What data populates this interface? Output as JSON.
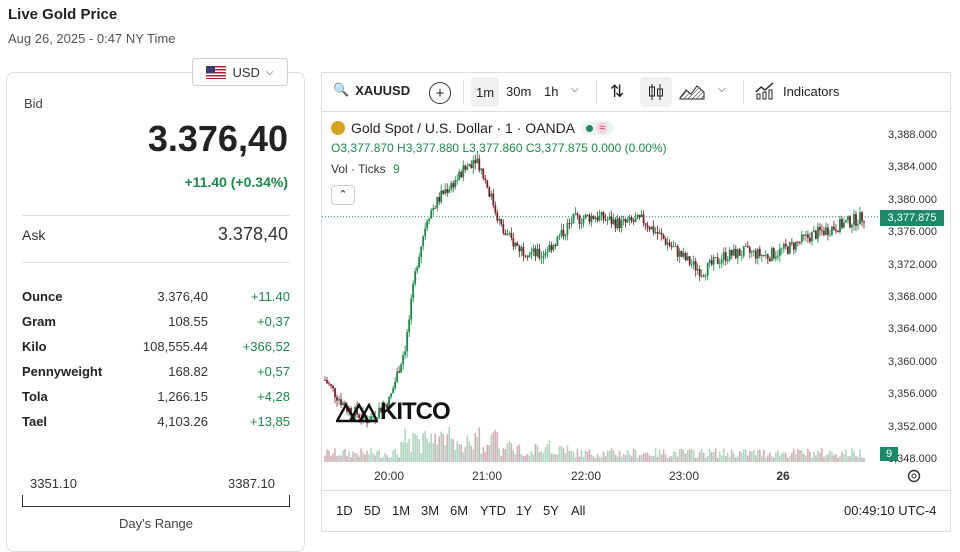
{
  "header": {
    "title": "Live Gold Price",
    "subtitle": "Aug 26, 2025 - 0:47 NY Time"
  },
  "currency": {
    "label": "USD",
    "icon": "us-flag-icon"
  },
  "bid": {
    "label": "Bid",
    "price": "3.376,40",
    "change": "+11.40 (+0.34%)"
  },
  "ask": {
    "label": "Ask",
    "price": "3.378,40"
  },
  "units": [
    {
      "unit": "Ounce",
      "price": "3.376,40",
      "change": "+11.40"
    },
    {
      "unit": "Gram",
      "price": "108.55",
      "change": "+0,37"
    },
    {
      "unit": "Kilo",
      "price": "108,555.44",
      "change": "+366,52"
    },
    {
      "unit": "Pennyweight",
      "price": "168.82",
      "change": "+0,57"
    },
    {
      "unit": "Tola",
      "price": "1,266.15",
      "change": "+4,28"
    },
    {
      "unit": "Tael",
      "price": "4,103.26",
      "change": "+13,85"
    }
  ],
  "days_range": {
    "low": "3351.10",
    "high": "3387.10",
    "label": "Day's Range"
  },
  "toolbar": {
    "symbol": "XAUUSD",
    "timeframes": [
      "1m",
      "30m",
      "1h"
    ],
    "indicators_label": "Indicators"
  },
  "legend": {
    "title": "Gold Spot / U.S. Dollar · 1 · OANDA",
    "ohlc": "O3,377.870 H3,377.880 L3,377.860 C3,377.875 0.000 (0.00%)",
    "vol_label": "Vol · Ticks",
    "vol_value": "9"
  },
  "chart_data": {
    "type": "candlestick",
    "y_ticks": [
      "3,388.000",
      "3,384.000",
      "3,380.000",
      "3,376.000",
      "3,372.000",
      "3,368.000",
      "3,364.000",
      "3,360.000",
      "3,356.000",
      "3,352.000",
      "3,348.000"
    ],
    "x_ticks": [
      "20:00",
      "21:00",
      "22:00",
      "23:00",
      "26"
    ],
    "last_price": "3,377.875",
    "last_volume": "9",
    "ylim": [
      3348,
      3390
    ],
    "path": [
      {
        "t": 0.0,
        "v": 3357.5
      },
      {
        "t": 0.04,
        "v": 3354.0
      },
      {
        "t": 0.08,
        "v": 3352.5
      },
      {
        "t": 0.12,
        "v": 3355.0
      },
      {
        "t": 0.15,
        "v": 3362.0
      },
      {
        "t": 0.17,
        "v": 3372.0
      },
      {
        "t": 0.19,
        "v": 3378.0
      },
      {
        "t": 0.22,
        "v": 3381.0
      },
      {
        "t": 0.25,
        "v": 3383.0
      },
      {
        "t": 0.28,
        "v": 3385.5
      },
      {
        "t": 0.3,
        "v": 3382.0
      },
      {
        "t": 0.33,
        "v": 3376.0
      },
      {
        "t": 0.36,
        "v": 3374.0
      },
      {
        "t": 0.4,
        "v": 3373.0
      },
      {
        "t": 0.43,
        "v": 3375.0
      },
      {
        "t": 0.46,
        "v": 3377.5
      },
      {
        "t": 0.5,
        "v": 3378.0
      },
      {
        "t": 0.55,
        "v": 3377.0
      },
      {
        "t": 0.59,
        "v": 3377.5
      },
      {
        "t": 0.63,
        "v": 3375.0
      },
      {
        "t": 0.67,
        "v": 3372.5
      },
      {
        "t": 0.7,
        "v": 3371.0
      },
      {
        "t": 0.74,
        "v": 3373.0
      },
      {
        "t": 0.78,
        "v": 3373.5
      },
      {
        "t": 0.82,
        "v": 3373.0
      },
      {
        "t": 0.86,
        "v": 3374.0
      },
      {
        "t": 0.9,
        "v": 3375.5
      },
      {
        "t": 0.94,
        "v": 3376.5
      },
      {
        "t": 1.0,
        "v": 3377.9
      }
    ]
  },
  "range_buttons": [
    "1D",
    "5D",
    "1M",
    "3M",
    "6M",
    "YTD",
    "1Y",
    "5Y",
    "All"
  ],
  "clock": "00:49:10 UTC-4",
  "watermark": "KITCO",
  "colors": {
    "up": "#1a8a4a",
    "down": "#7a1e2c",
    "accent": "#1a8a6a"
  }
}
